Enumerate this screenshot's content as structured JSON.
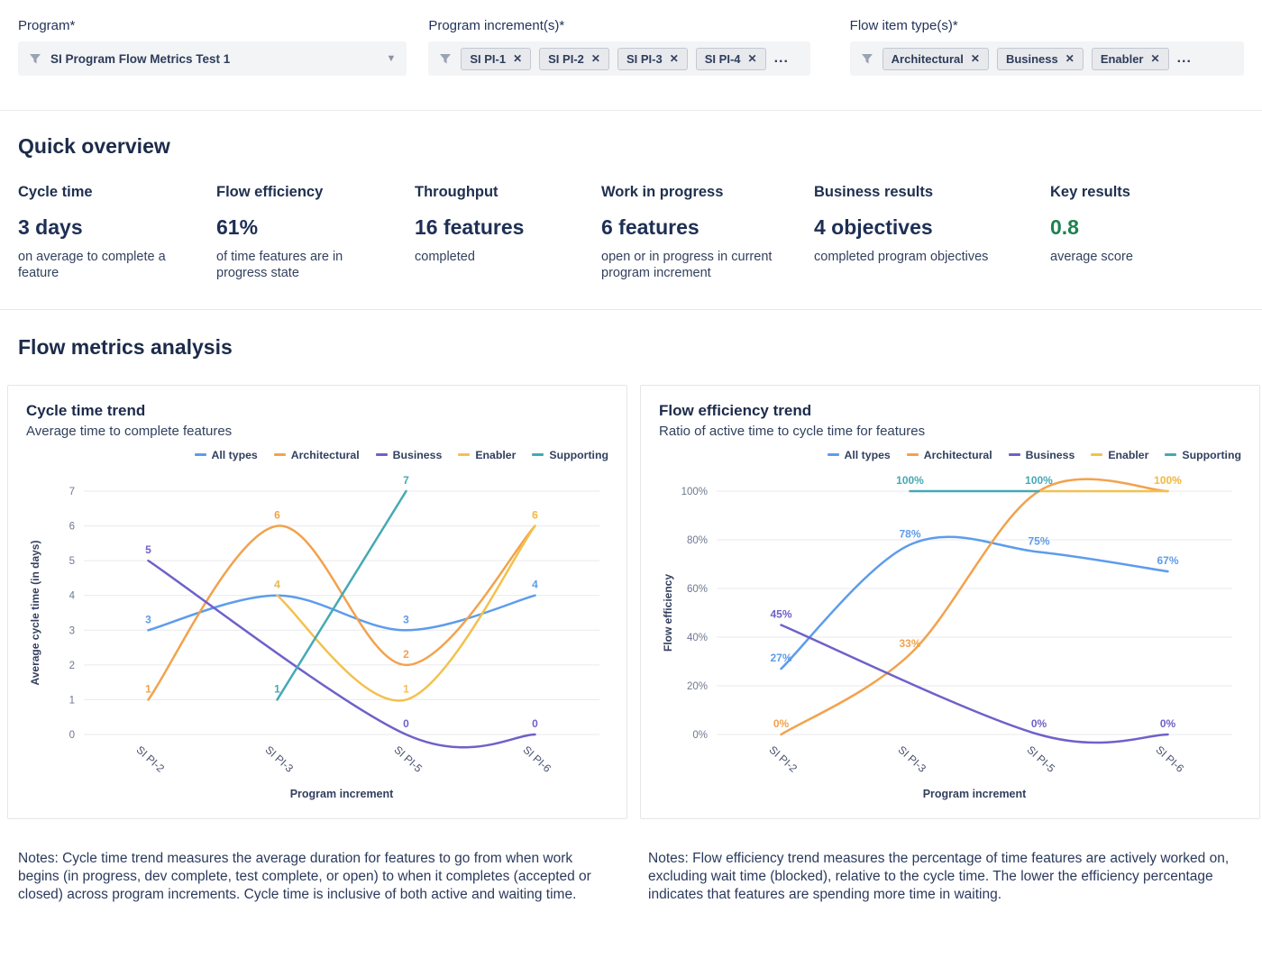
{
  "filters": {
    "program": {
      "label": "Program*",
      "value": "SI Program Flow Metrics Test 1"
    },
    "increments": {
      "label": "Program increment(s)*",
      "chips": [
        "SI PI-1",
        "SI PI-2",
        "SI PI-3",
        "SI PI-4"
      ],
      "more": "...",
      "remove_glyph": "✕"
    },
    "types": {
      "label": "Flow item type(s)*",
      "chips": [
        "Architectural",
        "Business",
        "Enabler"
      ],
      "more": "...",
      "remove_glyph": "✕"
    }
  },
  "overview": {
    "title": "Quick overview",
    "metrics": [
      {
        "label": "Cycle time",
        "value": "3 days",
        "desc": "on average to complete a feature"
      },
      {
        "label": "Flow efficiency",
        "value": "61%",
        "desc": "of time features are in progress state"
      },
      {
        "label": "Throughput",
        "value": "16 features",
        "desc": "completed"
      },
      {
        "label": "Work in progress",
        "value": "6 features",
        "desc": "open or in progress in current program increment"
      },
      {
        "label": "Business results",
        "value": "4 objectives",
        "desc": "completed program objectives"
      },
      {
        "label": "Key results",
        "value": "0.8",
        "desc": "average score",
        "value_color": "#1e8250"
      }
    ]
  },
  "analysis_title": "Flow metrics analysis",
  "chart_data": [
    {
      "type": "line",
      "title": "Cycle time trend",
      "subtitle": "Average time to complete features",
      "xlabel": "Program increment",
      "ylabel": "Average cycle time (in days)",
      "categories": [
        "SI PI-2",
        "SI PI-3",
        "SI PI-5",
        "SI PI-6"
      ],
      "ymin": 0,
      "ymax": 7,
      "yticks": [
        0,
        1,
        2,
        3,
        4,
        5,
        6,
        7
      ],
      "ytick_labels": [
        "0",
        "1",
        "2",
        "3",
        "4",
        "5",
        "6",
        "7"
      ],
      "legend_position": "top-right",
      "grid": "horizontal",
      "series": [
        {
          "name": "All types",
          "color": "#5d9cec",
          "values": [
            3,
            4,
            3,
            4
          ],
          "labels": [
            "3",
            "4",
            "3",
            "4"
          ]
        },
        {
          "name": "Architectural",
          "color": "#f2a24d",
          "values": [
            1,
            6,
            2,
            6
          ],
          "labels": [
            "1",
            "6",
            "2",
            "6"
          ]
        },
        {
          "name": "Business",
          "color": "#6e61c9",
          "values": [
            5,
            null,
            0,
            0
          ],
          "labels": [
            "5",
            null,
            "0",
            "0"
          ]
        },
        {
          "name": "Enabler",
          "color": "#f2c14e",
          "values": [
            null,
            4,
            1,
            6
          ],
          "labels": [
            null,
            "4",
            "1",
            "6"
          ]
        },
        {
          "name": "Supporting",
          "color": "#45a9b4",
          "values": [
            null,
            1,
            7,
            null
          ],
          "labels": [
            null,
            "1",
            "7",
            null
          ]
        }
      ],
      "notes": "Notes: Cycle time trend measures the average duration for features to go from when work begins (in progress, dev complete, test complete, or open) to when it completes (accepted or closed) across program increments. Cycle time is inclusive of both active and waiting time."
    },
    {
      "type": "line",
      "title": "Flow efficiency trend",
      "subtitle": "Ratio of active time to cycle time for features",
      "xlabel": "Program increment",
      "ylabel": "Flow efficiency",
      "categories": [
        "SI PI-2",
        "SI PI-3",
        "SI PI-5",
        "SI PI-6"
      ],
      "ymin": 0,
      "ymax": 100,
      "yticks": [
        0,
        20,
        40,
        60,
        80,
        100
      ],
      "ytick_labels": [
        "0%",
        "20%",
        "40%",
        "60%",
        "80%",
        "100%"
      ],
      "legend_position": "top-right",
      "grid": "horizontal",
      "series": [
        {
          "name": "All types",
          "color": "#5d9cec",
          "values": [
            27,
            78,
            75,
            67
          ],
          "labels": [
            "27%",
            "78%",
            "75%",
            "67%"
          ]
        },
        {
          "name": "Architectural",
          "color": "#f2a24d",
          "values": [
            0,
            33,
            100,
            100
          ],
          "labels": [
            "0%",
            "33%",
            null,
            "100%"
          ]
        },
        {
          "name": "Business",
          "color": "#6e61c9",
          "values": [
            45,
            null,
            0,
            0
          ],
          "labels": [
            "45%",
            null,
            "0%",
            "0%"
          ]
        },
        {
          "name": "Enabler",
          "color": "#f2c14e",
          "values": [
            null,
            null,
            100,
            100
          ],
          "labels": [
            null,
            null,
            null,
            "100%"
          ]
        },
        {
          "name": "Supporting",
          "color": "#45a9b4",
          "values": [
            null,
            100,
            100,
            null
          ],
          "labels": [
            null,
            "100%",
            "100%",
            null
          ]
        }
      ],
      "notes": "Notes: Flow efficiency trend measures the percentage of time features are actively worked on, excluding wait time (blocked), relative to the cycle time. The lower the efficiency percentage indicates that features are spending more time in waiting."
    }
  ]
}
